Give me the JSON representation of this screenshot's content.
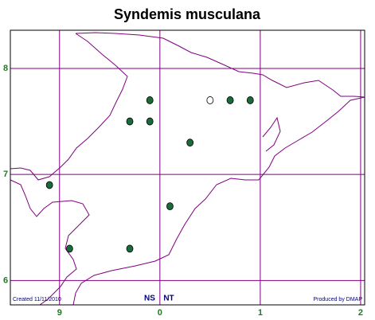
{
  "map": {
    "title": "Syndemis musculana",
    "xlim": [
      -0.49,
      3.04
    ],
    "ylim": [
      5.77,
      8.36
    ],
    "xticks": [
      {
        "value": 0,
        "label": "9"
      },
      {
        "value": 1,
        "label": "0"
      },
      {
        "value": 2,
        "label": "1"
      },
      {
        "value": 3,
        "label": "2"
      }
    ],
    "yticks": [
      6,
      7,
      8
    ],
    "grid_color": "#800080",
    "points": [
      {
        "x": 0.9,
        "y": 7.7,
        "color": "#1a6b3a"
      },
      {
        "x": 0.7,
        "y": 7.5,
        "color": "#1a6b3a"
      },
      {
        "x": 0.9,
        "y": 7.5,
        "color": "#1a6b3a"
      },
      {
        "x": 1.3,
        "y": 7.3,
        "color": "#1a6b3a"
      },
      {
        "x": 1.5,
        "y": 7.7,
        "color": "#ffffff"
      },
      {
        "x": 1.7,
        "y": 7.7,
        "color": "#1a6b3a"
      },
      {
        "x": 1.9,
        "y": 7.7,
        "color": "#1a6b3a"
      },
      {
        "x": -0.1,
        "y": 6.9,
        "color": "#1a6b3a"
      },
      {
        "x": 1.1,
        "y": 6.7,
        "color": "#1a6b3a"
      },
      {
        "x": 0.1,
        "y": 6.3,
        "color": "#1a6b3a"
      },
      {
        "x": 0.7,
        "y": 6.3,
        "color": "#1a6b3a"
      }
    ],
    "created": "Created 11/11/2010",
    "square_left": "NS",
    "square_right": "NT",
    "credit": "Produced by DMAP"
  }
}
